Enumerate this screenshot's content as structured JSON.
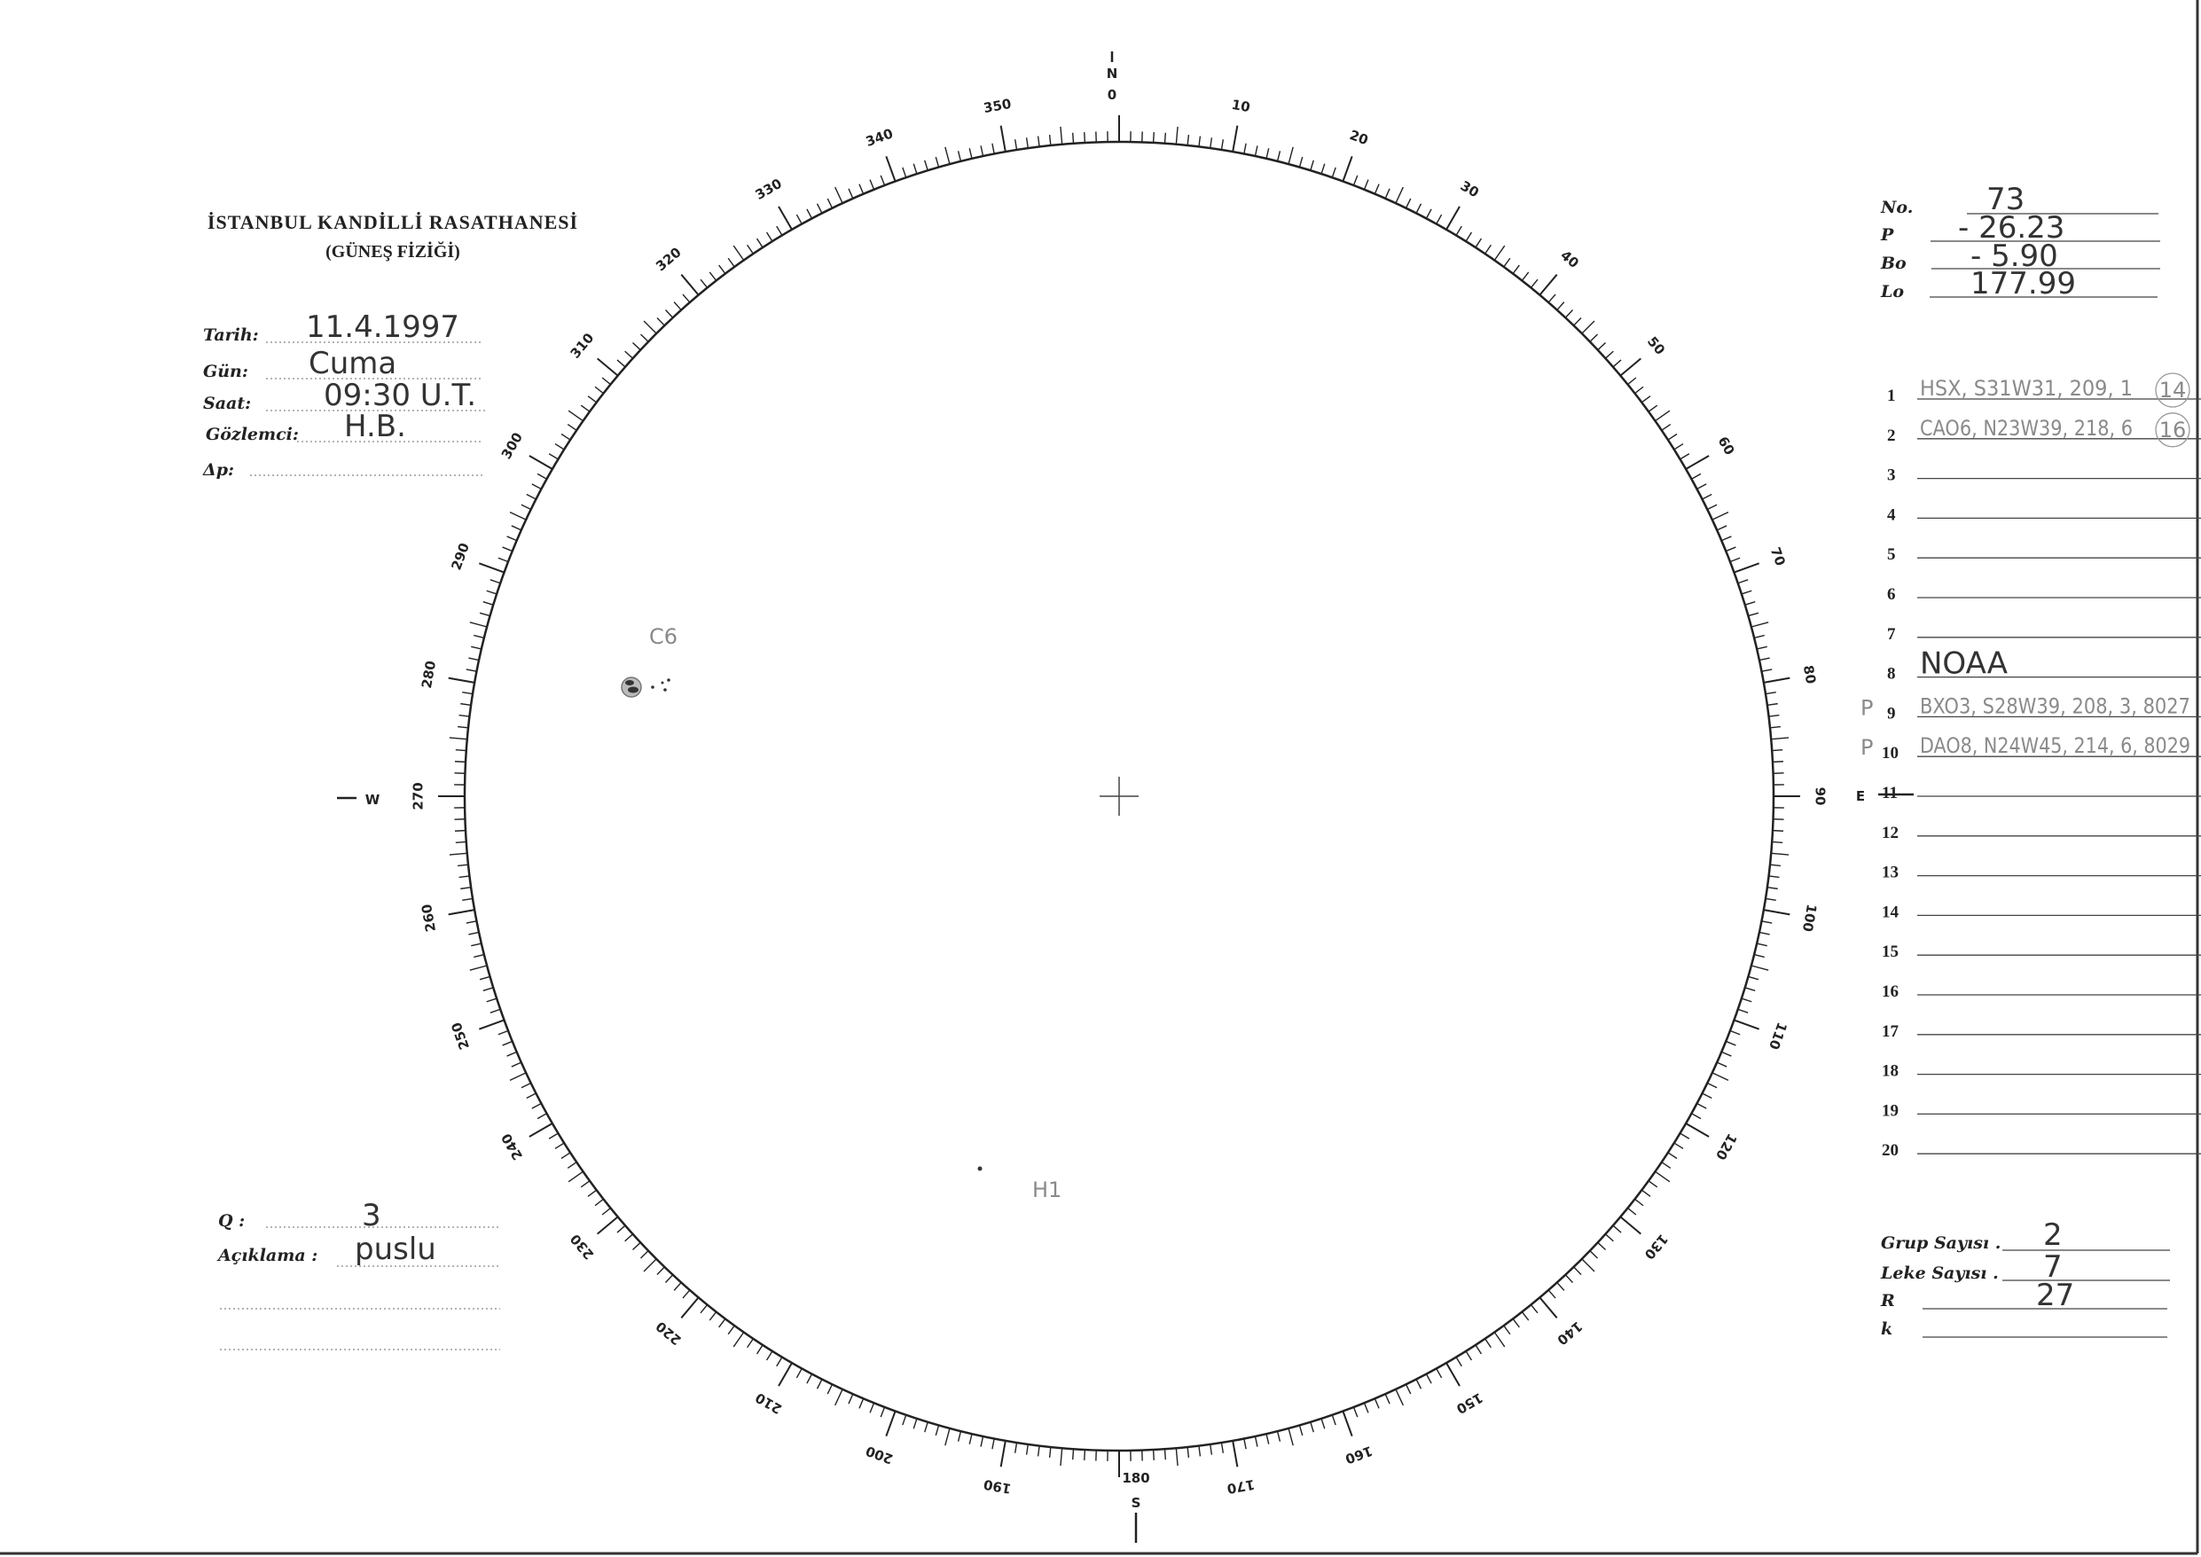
{
  "header": {
    "title": "İSTANBUL KANDİLLİ RASATHANESİ",
    "subtitle": "(GÜNEŞ FİZİĞİ)"
  },
  "observation": {
    "tarih_label": "Tarih:",
    "tarih": "11.4.1997",
    "gun_label": "Gün:",
    "gun": "Cuma",
    "saat_label": "Saat:",
    "saat": "09:30 U.T.",
    "gozlemci_label": "Gözlemci:",
    "gozlemci": "H.B.",
    "dp_label": "Δp:",
    "dp": ""
  },
  "ephemeris": {
    "no_label": "No.",
    "no": "73",
    "p_label": "P",
    "p": "- 26.23",
    "bo_label": "Bo",
    "bo": "- 5.90",
    "lo_label": "Lo",
    "lo": "177.99"
  },
  "groups": [
    {
      "n": "1",
      "text": "HSX, S31W31, 209, 1",
      "circled": "14",
      "prefix": ""
    },
    {
      "n": "2",
      "text": "CAO6, N23W39, 218, 6",
      "circled": "16",
      "prefix": ""
    },
    {
      "n": "3",
      "text": "",
      "circled": "",
      "prefix": ""
    },
    {
      "n": "4",
      "text": "",
      "circled": "",
      "prefix": ""
    },
    {
      "n": "5",
      "text": "",
      "circled": "",
      "prefix": ""
    },
    {
      "n": "6",
      "text": "",
      "circled": "",
      "prefix": ""
    },
    {
      "n": "7",
      "text": "",
      "circled": "",
      "prefix": ""
    },
    {
      "n": "8",
      "text": "NOAA",
      "circled": "",
      "prefix": ""
    },
    {
      "n": "9",
      "text": "BXO3, S28W39, 208, 3, 8027",
      "circled": "",
      "prefix": "P"
    },
    {
      "n": "10",
      "text": "DAO8, N24W45, 214, 6, 8029",
      "circled": "",
      "prefix": "P"
    },
    {
      "n": "11",
      "text": "",
      "circled": "",
      "prefix": ""
    },
    {
      "n": "12",
      "text": "",
      "circled": "",
      "prefix": ""
    },
    {
      "n": "13",
      "text": "",
      "circled": "",
      "prefix": ""
    },
    {
      "n": "14",
      "text": "",
      "circled": "",
      "prefix": ""
    },
    {
      "n": "15",
      "text": "",
      "circled": "",
      "prefix": ""
    },
    {
      "n": "16",
      "text": "",
      "circled": "",
      "prefix": ""
    },
    {
      "n": "17",
      "text": "",
      "circled": "",
      "prefix": ""
    },
    {
      "n": "18",
      "text": "",
      "circled": "",
      "prefix": ""
    },
    {
      "n": "19",
      "text": "",
      "circled": "",
      "prefix": ""
    },
    {
      "n": "20",
      "text": "",
      "circled": "",
      "prefix": ""
    }
  ],
  "summary": {
    "grup_label": "Grup Sayısı .",
    "grup": "2",
    "leke_label": "Leke Sayısı .",
    "leke": "7",
    "r_label": "R",
    "r": "27",
    "k_label": "k",
    "k": ""
  },
  "quality": {
    "q_label": "Q :",
    "q": "3",
    "aciklama_label": "Açıklama :",
    "aciklama": "puslu"
  },
  "disk": {
    "cardinals": {
      "n": "N",
      "e": "E",
      "s": "S",
      "w": "W"
    },
    "degree_labels": [
      0,
      10,
      20,
      30,
      40,
      50,
      60,
      70,
      80,
      90,
      100,
      110,
      120,
      130,
      140,
      150,
      160,
      170,
      180,
      190,
      200,
      210,
      220,
      230,
      240,
      250,
      260,
      270,
      280,
      290,
      300,
      310,
      320,
      330,
      340,
      350
    ],
    "sunspot_labels": {
      "c6": "C6",
      "h1": "H1"
    }
  }
}
